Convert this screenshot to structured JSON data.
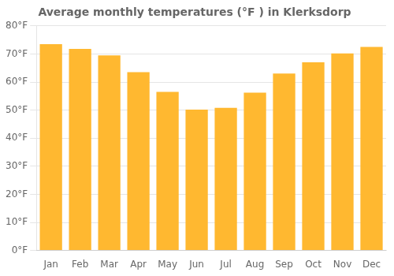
{
  "chart_data": {
    "type": "bar",
    "title": "Average monthly temperatures (°F ) in Klerksdorp",
    "categories": [
      "Jan",
      "Feb",
      "Mar",
      "Apr",
      "May",
      "Jun",
      "Jul",
      "Aug",
      "Sep",
      "Oct",
      "Nov",
      "Dec"
    ],
    "values": [
      73.5,
      71.8,
      69.5,
      63.5,
      56.5,
      50.2,
      50.8,
      56.2,
      63.0,
      67.0,
      70.2,
      72.5
    ],
    "color": "#FFB830",
    "ylim": [
      0,
      80
    ],
    "yticks": [
      {
        "value": 0,
        "label": "0°F"
      },
      {
        "value": 10,
        "label": "10°F"
      },
      {
        "value": 20,
        "label": "20°F"
      },
      {
        "value": 30,
        "label": "30°F"
      },
      {
        "value": 40,
        "label": "40°F"
      },
      {
        "value": 50,
        "label": "50°F"
      },
      {
        "value": 60,
        "label": "60°F"
      },
      {
        "value": 70,
        "label": "70°F"
      },
      {
        "value": 80,
        "label": "80°F"
      }
    ],
    "grid": true
  }
}
